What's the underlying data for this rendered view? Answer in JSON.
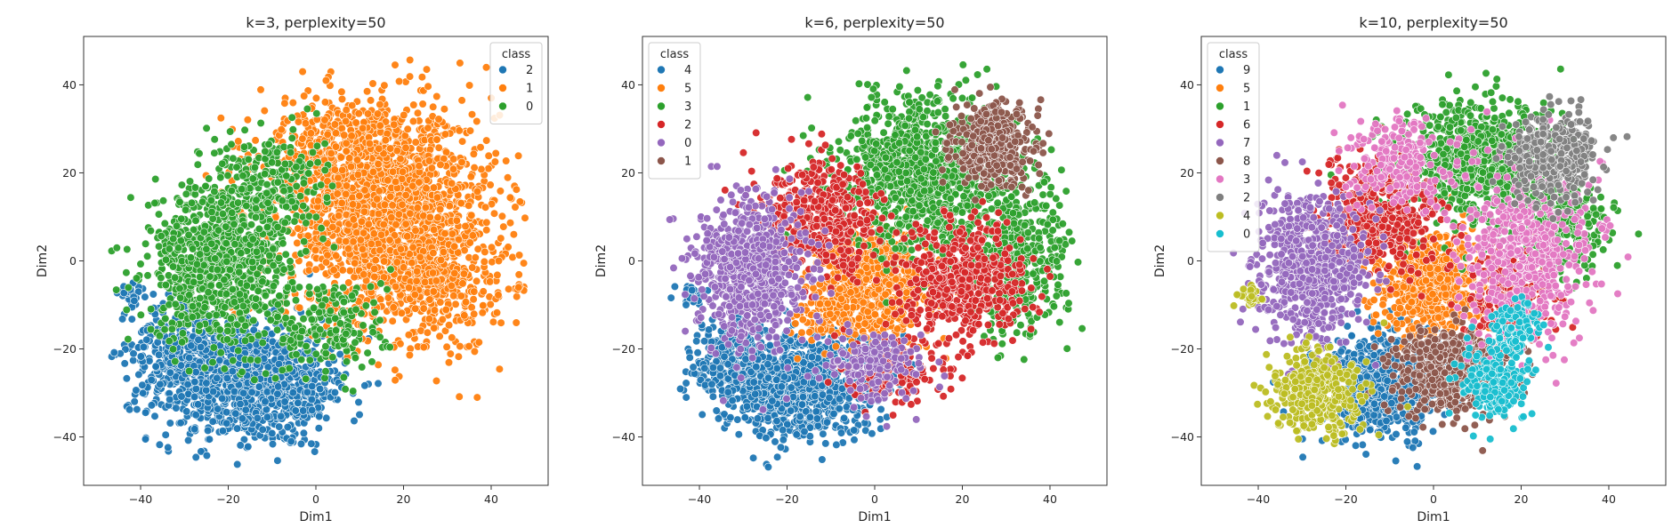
{
  "chart_data": [
    {
      "type": "scatter",
      "title": "k=3, perplexity=50",
      "xlabel": "Dim1",
      "ylabel": "Dim2",
      "xlim": [
        -53,
        53
      ],
      "ylim": [
        -51,
        51
      ],
      "xticks": [
        -40,
        -20,
        0,
        20,
        40
      ],
      "yticks": [
        -40,
        -20,
        0,
        20,
        40
      ],
      "grid": false,
      "legend": {
        "title": "class",
        "placement": "top-right"
      },
      "series": [
        {
          "name": "2",
          "color": "#1f77b4",
          "clusters": [
            {
              "cx": -18,
              "cy": -27,
              "sx": 10,
              "sy": 7,
              "n": 900
            },
            {
              "cx": -30,
              "cy": -20,
              "sx": 6,
              "sy": 6,
              "n": 260
            },
            {
              "cx": -5,
              "cy": -30,
              "sx": 6,
              "sy": 5,
              "n": 200
            },
            {
              "cx": -42,
              "cy": -8,
              "sx": 1.5,
              "sy": 1.2,
              "n": 30
            }
          ]
        },
        {
          "name": "1",
          "color": "#ff7f0e",
          "clusters": [
            {
              "cx": 17,
              "cy": 10,
              "sx": 12,
              "sy": 12,
              "n": 1700
            },
            {
              "cx": 5,
              "cy": 25,
              "sx": 9,
              "sy": 6,
              "n": 350
            },
            {
              "cx": 28,
              "cy": -5,
              "sx": 7,
              "sy": 8,
              "n": 250
            },
            {
              "cx": 46,
              "cy": -6,
              "sx": 0.8,
              "sy": 0.8,
              "n": 10
            }
          ]
        },
        {
          "name": "0",
          "color": "#2ca02c",
          "clusters": [
            {
              "cx": -22,
              "cy": 0,
              "sx": 8,
              "sy": 9,
              "n": 900
            },
            {
              "cx": -10,
              "cy": 18,
              "sx": 6,
              "sy": 6,
              "n": 200
            },
            {
              "cx": 3,
              "cy": -15,
              "sx": 7,
              "sy": 6,
              "n": 200
            }
          ]
        }
      ]
    },
    {
      "type": "scatter",
      "title": "k=6, perplexity=50",
      "xlabel": "Dim1",
      "ylabel": "Dim2",
      "xlim": [
        -53,
        53
      ],
      "ylim": [
        -51,
        51
      ],
      "xticks": [
        -40,
        -20,
        0,
        20,
        40
      ],
      "yticks": [
        -40,
        -20,
        0,
        20,
        40
      ],
      "grid": false,
      "legend": {
        "title": "class",
        "placement": "top-left"
      },
      "series": [
        {
          "name": "4",
          "color": "#1f77b4",
          "clusters": [
            {
              "cx": -18,
              "cy": -28,
              "sx": 9,
              "sy": 6,
              "n": 900
            },
            {
              "cx": -32,
              "cy": -22,
              "sx": 5,
              "sy": 5,
              "n": 200
            },
            {
              "cx": -42,
              "cy": -8,
              "sx": 1.5,
              "sy": 1.2,
              "n": 30
            }
          ]
        },
        {
          "name": "5",
          "color": "#ff7f0e",
          "clusters": [
            {
              "cx": 0,
              "cy": -5,
              "sx": 6,
              "sy": 6,
              "n": 650
            },
            {
              "cx": -10,
              "cy": -12,
              "sx": 4,
              "sy": 4,
              "n": 120
            }
          ]
        },
        {
          "name": "3",
          "color": "#2ca02c",
          "clusters": [
            {
              "cx": 12,
              "cy": 20,
              "sx": 10,
              "sy": 9,
              "n": 1000
            },
            {
              "cx": 32,
              "cy": 0,
              "sx": 6,
              "sy": 9,
              "n": 400
            }
          ]
        },
        {
          "name": "2",
          "color": "#d62728",
          "clusters": [
            {
              "cx": -12,
              "cy": 10,
              "sx": 7,
              "sy": 6,
              "n": 450
            },
            {
              "cx": 20,
              "cy": -5,
              "sx": 7,
              "sy": 7,
              "n": 500
            },
            {
              "cx": 5,
              "cy": -25,
              "sx": 5,
              "sy": 4,
              "n": 150
            }
          ]
        },
        {
          "name": "0",
          "color": "#9467bd",
          "clusters": [
            {
              "cx": -28,
              "cy": -2,
              "sx": 6,
              "sy": 8,
              "n": 750
            },
            {
              "cx": 0,
              "cy": -24,
              "sx": 6,
              "sy": 4,
              "n": 160
            }
          ]
        },
        {
          "name": "1",
          "color": "#8c564b",
          "clusters": [
            {
              "cx": 27,
              "cy": 26,
              "sx": 4.5,
              "sy": 4.5,
              "n": 450
            }
          ]
        }
      ]
    },
    {
      "type": "scatter",
      "title": "k=10, perplexity=50",
      "xlabel": "Dim1",
      "ylabel": "Dim2",
      "xlim": [
        -53,
        53
      ],
      "ylim": [
        -51,
        51
      ],
      "xticks": [
        -40,
        -20,
        0,
        20,
        40
      ],
      "yticks": [
        -40,
        -20,
        0,
        20,
        40
      ],
      "grid": false,
      "legend": {
        "title": "class",
        "placement": "top-left"
      },
      "series": [
        {
          "name": "9",
          "color": "#1f77b4",
          "clusters": [
            {
              "cx": -12,
              "cy": -28,
              "sx": 7,
              "sy": 6,
              "n": 650
            }
          ]
        },
        {
          "name": "5",
          "color": "#ff7f0e",
          "clusters": [
            {
              "cx": 0,
              "cy": -5,
              "sx": 6,
              "sy": 6,
              "n": 650
            }
          ]
        },
        {
          "name": "1",
          "color": "#2ca02c",
          "clusters": [
            {
              "cx": 10,
              "cy": 22,
              "sx": 9,
              "sy": 7,
              "n": 800
            },
            {
              "cx": 30,
              "cy": 8,
              "sx": 5,
              "sy": 6,
              "n": 250
            }
          ]
        },
        {
          "name": "6",
          "color": "#d62728",
          "clusters": [
            {
              "cx": -12,
              "cy": 10,
              "sx": 7,
              "sy": 6,
              "n": 450
            },
            {
              "cx": 18,
              "cy": -8,
              "sx": 5,
              "sy": 5,
              "n": 250
            }
          ]
        },
        {
          "name": "7",
          "color": "#9467bd",
          "clusters": [
            {
              "cx": -28,
              "cy": -2,
              "sx": 6,
              "sy": 8,
              "n": 700
            }
          ]
        },
        {
          "name": "8",
          "color": "#8c564b",
          "clusters": [
            {
              "cx": 4,
              "cy": -25,
              "sx": 7,
              "sy": 5,
              "n": 500
            }
          ]
        },
        {
          "name": "3",
          "color": "#e377c2",
          "clusters": [
            {
              "cx": 22,
              "cy": 2,
              "sx": 8,
              "sy": 10,
              "n": 550
            },
            {
              "cx": -8,
              "cy": 22,
              "sx": 6,
              "sy": 5,
              "n": 220
            }
          ]
        },
        {
          "name": "2",
          "color": "#7f7f7f",
          "clusters": [
            {
              "cx": 27,
              "cy": 24,
              "sx": 5,
              "sy": 5,
              "n": 420
            }
          ]
        },
        {
          "name": "4",
          "color": "#bcbd22",
          "clusters": [
            {
              "cx": -27,
              "cy": -30,
              "sx": 5,
              "sy": 5,
              "n": 380
            },
            {
              "cx": -42,
              "cy": -8,
              "sx": 1.5,
              "sy": 1.2,
              "n": 30
            }
          ]
        },
        {
          "name": "0",
          "color": "#17becf",
          "clusters": [
            {
              "cx": 14,
              "cy": -28,
              "sx": 4,
              "sy": 4,
              "n": 200
            },
            {
              "cx": 18,
              "cy": -15,
              "sx": 3,
              "sy": 3,
              "n": 120
            }
          ]
        }
      ]
    }
  ]
}
